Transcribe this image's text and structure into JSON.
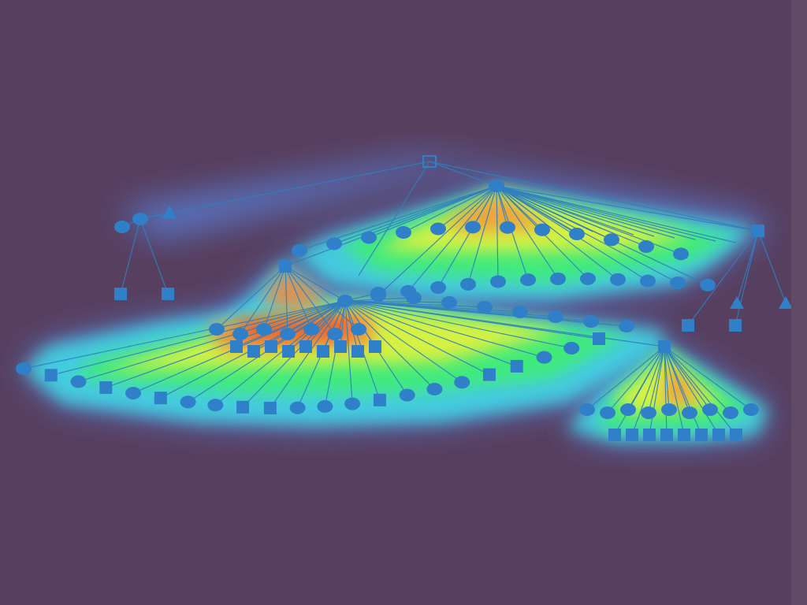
{
  "canvas": {
    "background": "#573f5f",
    "edge_strip": "#5f4a67"
  },
  "diagram": {
    "kind": "hierarchical tree with attention heatmap overlay",
    "node_color": "#2f80c8",
    "edge_color": "#2f7fbf",
    "heat_gradient": [
      "#5a8cf0",
      "#40e0e6",
      "#40f06a",
      "#e6f23c",
      "#f58a3a",
      "#e8502a"
    ],
    "node_shapes": [
      "circle",
      "square",
      "triangle",
      "hollow-square"
    ],
    "labels_visible": false
  }
}
